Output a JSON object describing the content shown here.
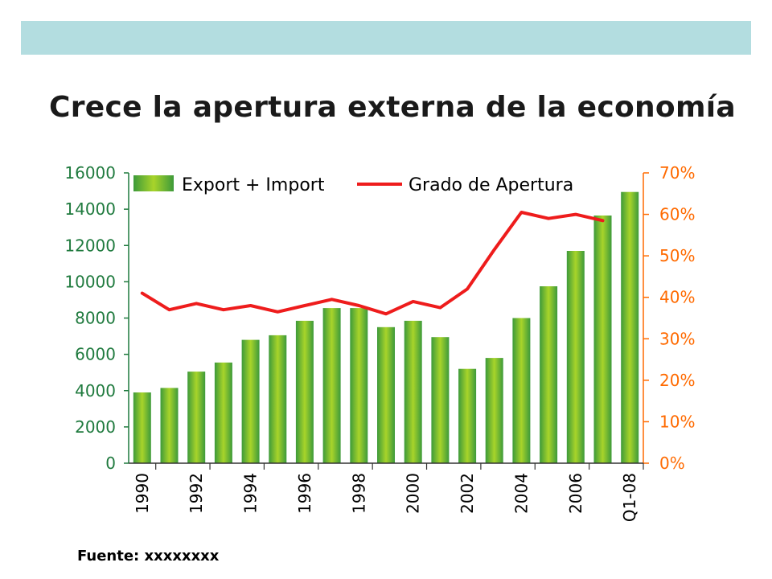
{
  "slide": {
    "title": "Crece la apertura externa de la economía",
    "source": "Fuente: xxxxxxxx",
    "band_color": "#b3dde0"
  },
  "chart_data": {
    "type": "bar",
    "categories": [
      "1990",
      "1991",
      "1992",
      "1993",
      "1994",
      "1995",
      "1996",
      "1997",
      "1998",
      "1999",
      "2000",
      "2001",
      "2002",
      "2003",
      "2004",
      "2005",
      "2006",
      "2007",
      "Q1-08"
    ],
    "x_tick_labels": [
      "1990",
      "",
      "1992",
      "",
      "1994",
      "",
      "1996",
      "",
      "1998",
      "",
      "2000",
      "",
      "2002",
      "",
      "2004",
      "",
      "2006",
      "",
      "Q1-08"
    ],
    "series": [
      {
        "name": "Export + Import",
        "type": "bar",
        "axis": "left",
        "color": "#7dbf2a",
        "values": [
          3900,
          4150,
          5050,
          5550,
          6800,
          7050,
          7850,
          8550,
          8550,
          7500,
          7850,
          6950,
          5200,
          5800,
          8000,
          9750,
          11700,
          13650,
          14950
        ]
      },
      {
        "name": "Grado de Apertura",
        "type": "line",
        "axis": "right",
        "color": "#ee1c1c",
        "values": [
          0.41,
          0.37,
          0.385,
          0.37,
          0.38,
          0.365,
          0.38,
          0.395,
          0.38,
          0.36,
          0.39,
          0.375,
          0.42,
          0.515,
          0.605,
          0.59,
          0.6,
          0.585,
          null
        ]
      }
    ],
    "y_left": {
      "ylim": [
        0,
        16000
      ],
      "ticks": [
        "0",
        "2000",
        "4000",
        "6000",
        "8000",
        "10000",
        "12000",
        "14000",
        "16000"
      ],
      "color": "#1f7a3e"
    },
    "y_right": {
      "ylim": [
        0,
        0.7
      ],
      "ticks": [
        "0%",
        "10%",
        "20%",
        "30%",
        "40%",
        "50%",
        "60%",
        "70%"
      ],
      "color": "#ff6a00"
    },
    "xlabel": "",
    "ylabel": "",
    "grid": false,
    "legend": "top"
  }
}
